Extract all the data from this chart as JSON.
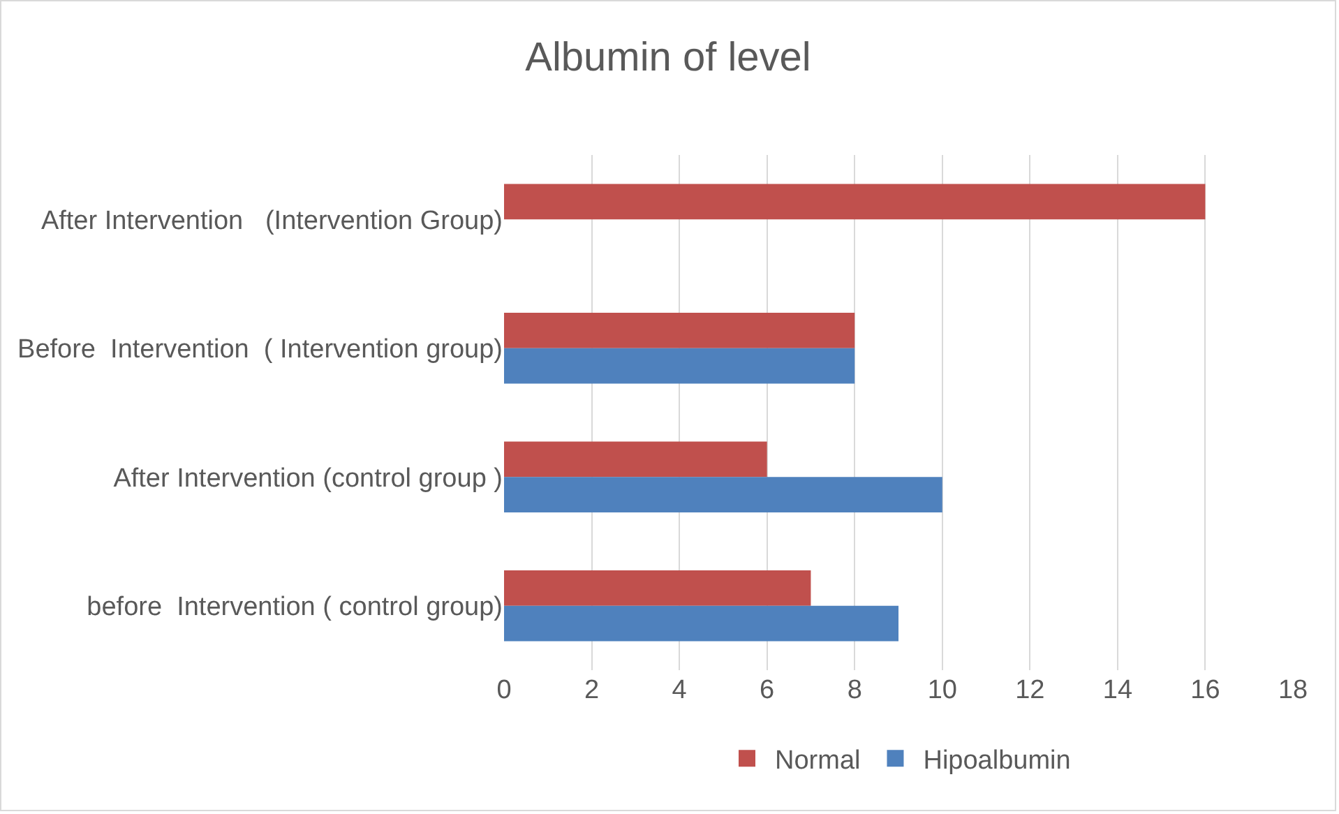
{
  "chart_data": {
    "type": "bar",
    "title": "Albumin of level",
    "orientation": "horizontal",
    "categories": [
      "After Intervention   (Intervention Group)",
      "Before  Intervention  ( Intervention group)",
      "After Intervention (control group )",
      "before  Intervention ( control group)"
    ],
    "series": [
      {
        "name": "Normal",
        "color": "#c0504d",
        "values": [
          16,
          8,
          6,
          7
        ]
      },
      {
        "name": "Hipoalbumin",
        "color": "#4f81bd",
        "values": [
          null,
          8,
          10,
          9
        ]
      }
    ],
    "xlim": [
      0,
      18
    ],
    "xticks": [
      0,
      2,
      4,
      6,
      8,
      10,
      12,
      14,
      16,
      18
    ],
    "grid": "x",
    "legend": "bottom"
  }
}
